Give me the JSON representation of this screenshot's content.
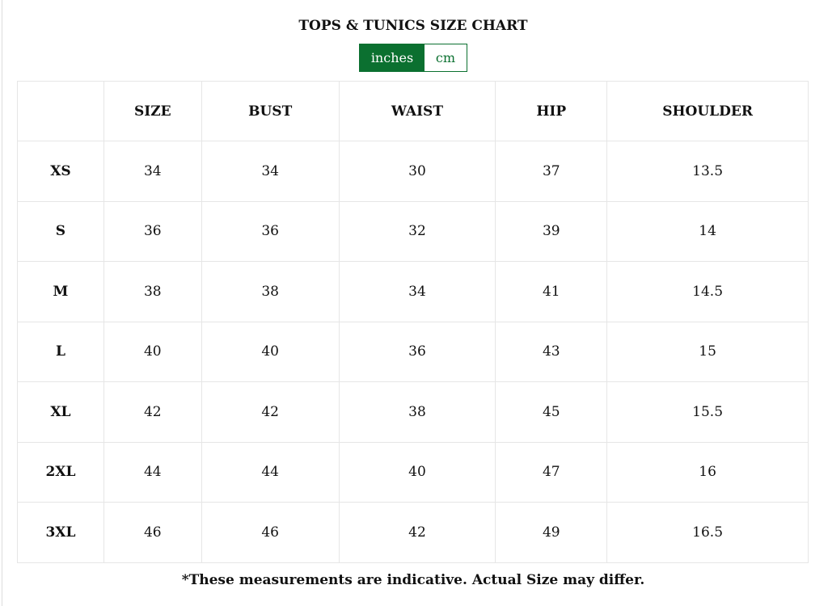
{
  "title": "TOPS & TUNICS SIZE CHART",
  "units": {
    "options": [
      "inches",
      "cm"
    ],
    "selected": "inches"
  },
  "accent_color": "#0b7030",
  "table": {
    "headers": [
      "",
      "SIZE",
      "BUST",
      "WAIST",
      "HIP",
      "SHOULDER"
    ],
    "rows": [
      [
        "XS",
        "34",
        "34",
        "30",
        "37",
        "13.5"
      ],
      [
        "S",
        "36",
        "36",
        "32",
        "39",
        "14"
      ],
      [
        "M",
        "38",
        "38",
        "34",
        "41",
        "14.5"
      ],
      [
        "L",
        "40",
        "40",
        "36",
        "43",
        "15"
      ],
      [
        "XL",
        "42",
        "42",
        "38",
        "45",
        "15.5"
      ],
      [
        "2XL",
        "44",
        "44",
        "40",
        "47",
        "16"
      ],
      [
        "3XL",
        "46",
        "46",
        "42",
        "49",
        "16.5"
      ]
    ]
  },
  "note": "*These measurements are indicative. Actual Size may differ."
}
